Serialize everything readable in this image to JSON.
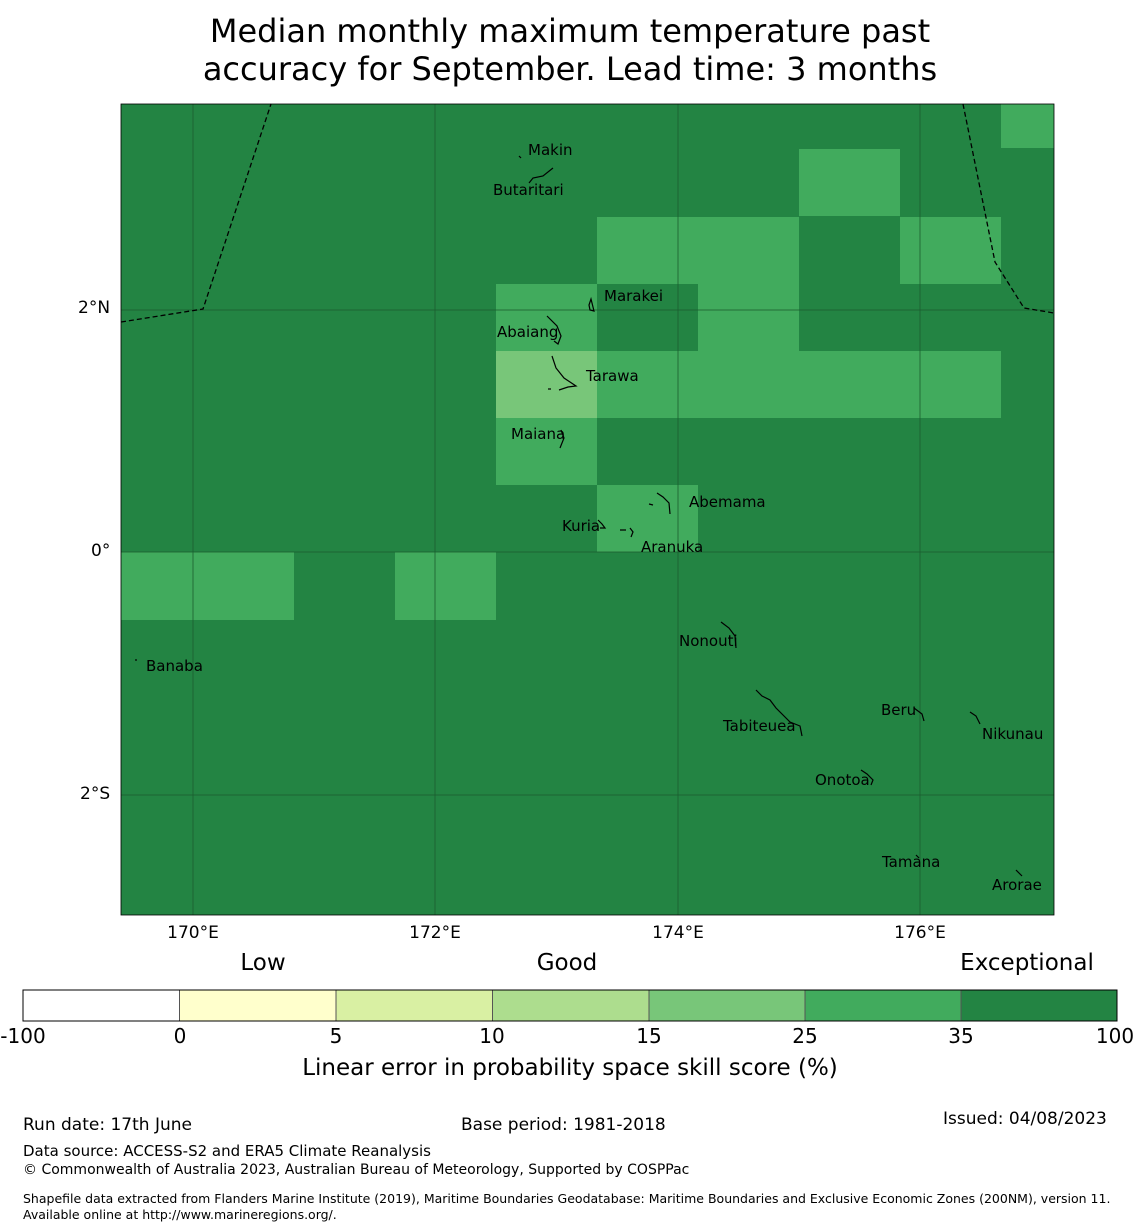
{
  "title_line1": "Median monthly maximum temperature past",
  "title_line2": "accuracy for September. Lead time: 3 months",
  "map": {
    "lat_labels": [
      "2°N",
      "0°",
      "2°S"
    ],
    "lon_labels": [
      "170°E",
      "172°E",
      "174°E",
      "176°E"
    ],
    "places": [
      "Makin",
      "Butaritari",
      "Marakei",
      "Abaiang",
      "Tarawa",
      "Maiana",
      "Abemama",
      "Kuria",
      "Aranuka",
      "Nonouti",
      "Banaba",
      "Tabiteuea",
      "Beru",
      "Nikunau",
      "Onotoa",
      "Tamana",
      "Arorae"
    ]
  },
  "colorbar": {
    "headings": [
      "Low",
      "Good",
      "Exceptional"
    ],
    "ticks": [
      "-100",
      "0",
      "5",
      "10",
      "15",
      "25",
      "35",
      "100"
    ],
    "colors": [
      "#ffffff",
      "#ffffcc",
      "#d9f0a3",
      "#addd8e",
      "#78c679",
      "#41ab5d",
      "#238443"
    ],
    "title": "Linear error in probability space skill score (%)"
  },
  "footer": {
    "run_date": "Run date: 17th June",
    "base_period": "Base period: 1981-2018",
    "issued": "Issued: 04/08/2023",
    "data_source": "Data source: ACCESS-S2 and ERA5 Climate Reanalysis",
    "copyright": "© Commonwealth of Australia 2023, Australian Bureau of Meteorology, Supported by COSPPac",
    "shapefile": "Shapefile data extracted from Flanders Marine Institute (2019), Maritime Boundaries Geodatabase: Maritime Boundaries and Exclusive Economic Zones (200NM), version 11. Available online at http://www.marineregions.org/."
  }
}
